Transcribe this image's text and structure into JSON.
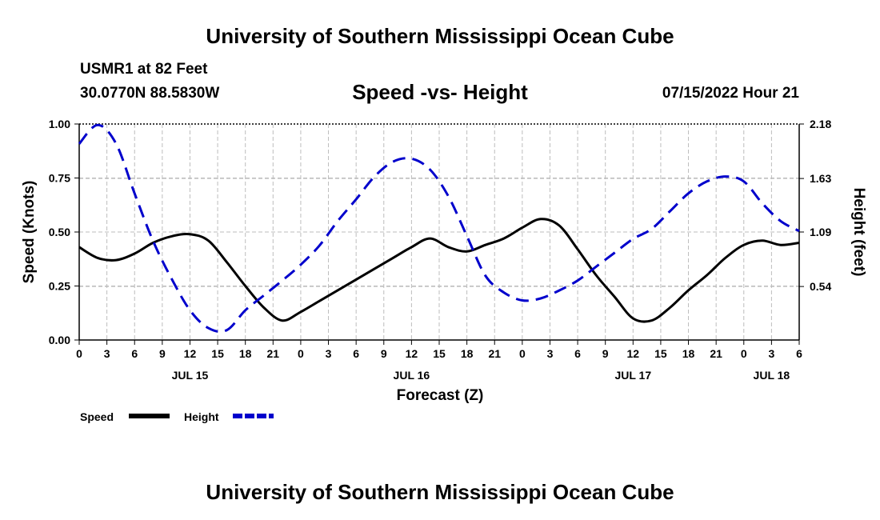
{
  "header": {
    "title": "University of Southern Mississippi Ocean Cube",
    "station": "USMR1 at 82 Feet",
    "coords": "30.0770N  88.5830W",
    "subtitle": "Speed -vs- Height",
    "datetime": "07/15/2022 Hour 21"
  },
  "footer": {
    "title": "University of Southern Mississippi Ocean Cube"
  },
  "chart_data": {
    "type": "line",
    "title": "Speed -vs- Height",
    "xlabel": "Forecast (Z)",
    "ylabel": "Speed (Knots)",
    "y2label": "Height (feet)",
    "x_ticks": [
      "0",
      "3",
      "6",
      "9",
      "12",
      "15",
      "18",
      "21",
      "0",
      "3",
      "6",
      "9",
      "12",
      "15",
      "18",
      "21",
      "0",
      "3",
      "6",
      "9",
      "12",
      "15",
      "18",
      "21",
      "0",
      "3",
      "6"
    ],
    "date_labels": [
      {
        "label": "JUL 15",
        "tick_index": 4
      },
      {
        "label": "JUL 16",
        "tick_index": 12
      },
      {
        "label": "JUL 17",
        "tick_index": 20
      },
      {
        "label": "JUL 18",
        "tick_index": 25
      }
    ],
    "x_range_hours": [
      0,
      78
    ],
    "ylim": [
      0,
      1.0
    ],
    "y_ticks": [
      "0.00",
      "0.25",
      "0.50",
      "0.75",
      "1.00"
    ],
    "y2lim": [
      0,
      2.18
    ],
    "y2_ticks": [
      "0.54",
      "1.09",
      "1.63",
      "2.18"
    ],
    "grid": true,
    "legend_position": "bottom-left",
    "series": [
      {
        "name": "Speed",
        "axis": "left",
        "color": "#000000",
        "dash": "solid",
        "x": [
          0,
          2,
          4,
          6,
          8,
          10,
          12,
          14,
          16,
          18,
          20,
          22,
          24,
          26,
          28,
          30,
          32,
          34,
          36,
          38,
          40,
          42,
          44,
          46,
          48,
          50,
          52,
          54,
          56,
          58,
          60,
          62,
          64,
          66,
          68,
          70,
          72,
          74,
          76,
          78
        ],
        "values": [
          0.43,
          0.38,
          0.37,
          0.4,
          0.45,
          0.48,
          0.49,
          0.46,
          0.36,
          0.25,
          0.15,
          0.09,
          0.13,
          0.18,
          0.23,
          0.28,
          0.33,
          0.38,
          0.43,
          0.47,
          0.43,
          0.41,
          0.44,
          0.47,
          0.52,
          0.56,
          0.53,
          0.42,
          0.3,
          0.2,
          0.1,
          0.09,
          0.15,
          0.23,
          0.3,
          0.38,
          0.44,
          0.46,
          0.44,
          0.45
        ]
      },
      {
        "name": "Height",
        "axis": "right",
        "color": "#0000cc",
        "dash": "dashed",
        "x": [
          0,
          2,
          4,
          6,
          8,
          10,
          12,
          14,
          16,
          18,
          20,
          22,
          24,
          26,
          28,
          30,
          32,
          34,
          36,
          38,
          40,
          42,
          44,
          46,
          48,
          50,
          52,
          54,
          56,
          58,
          60,
          62,
          64,
          66,
          68,
          70,
          72,
          74,
          76,
          78
        ],
        "values": [
          1.98,
          2.17,
          1.98,
          1.48,
          1.0,
          0.62,
          0.3,
          0.12,
          0.1,
          0.3,
          0.45,
          0.6,
          0.76,
          0.95,
          1.2,
          1.42,
          1.65,
          1.8,
          1.83,
          1.72,
          1.45,
          1.05,
          0.65,
          0.48,
          0.4,
          0.42,
          0.5,
          0.6,
          0.74,
          0.88,
          1.02,
          1.12,
          1.3,
          1.48,
          1.6,
          1.65,
          1.6,
          1.38,
          1.2,
          1.1
        ]
      }
    ]
  }
}
